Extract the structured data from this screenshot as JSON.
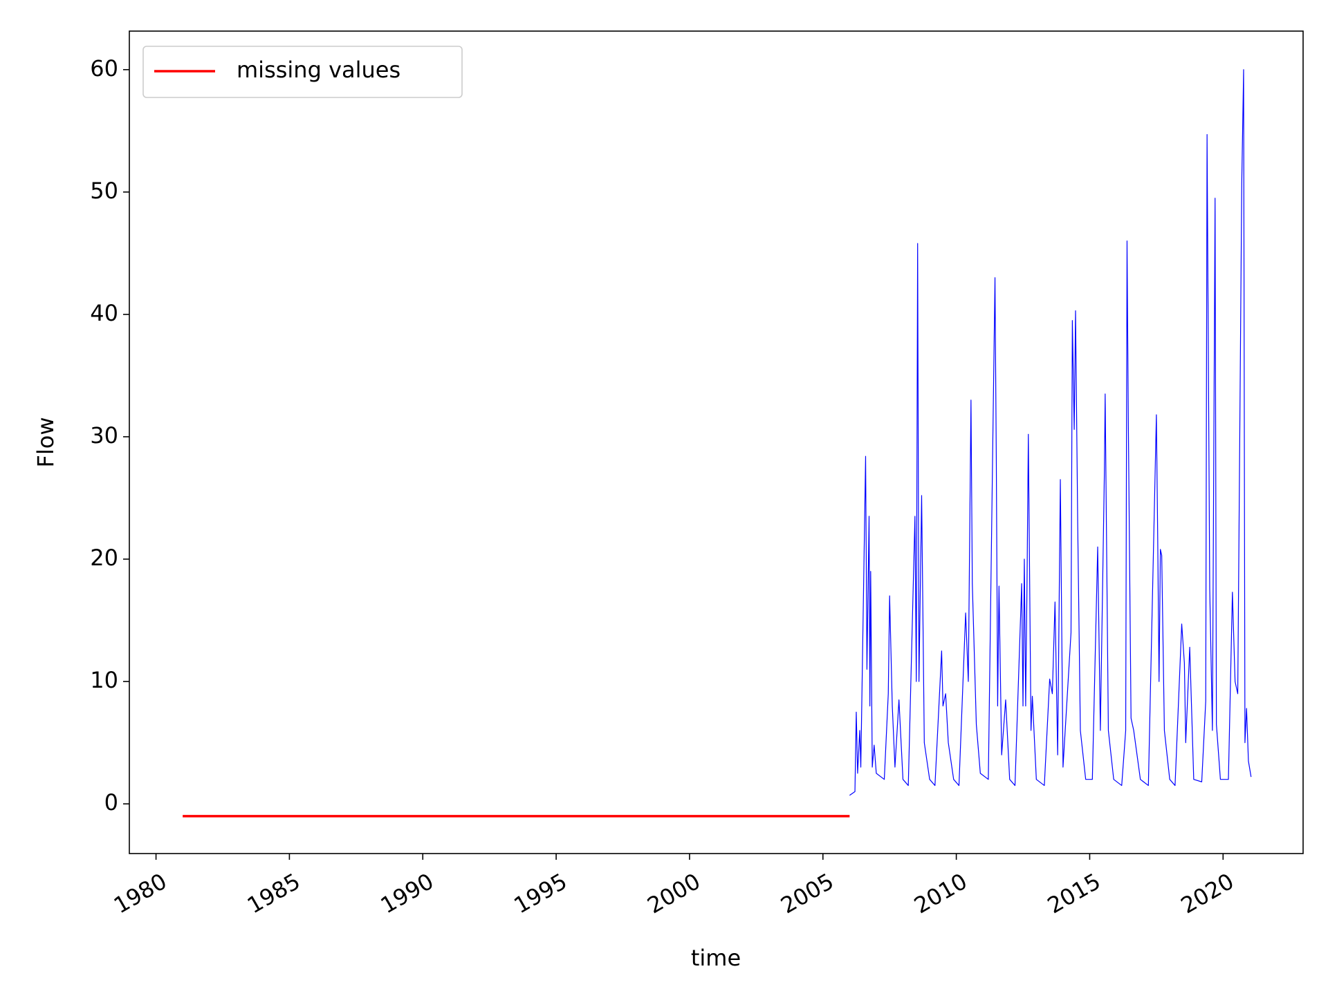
{
  "chart_data": {
    "type": "line",
    "xlabel": "time",
    "ylabel": "Flow",
    "xlim": [
      1979.0,
      2023.0
    ],
    "xticks": [
      1980,
      1985,
      1990,
      1995,
      2000,
      2005,
      2010,
      2015,
      2020
    ],
    "ylim": [
      -4.06,
      63.15
    ],
    "yticks": [
      0,
      10,
      20,
      30,
      40,
      50,
      60
    ],
    "grid": false,
    "legend": "upper left",
    "series": [
      {
        "name": "missing values",
        "color": "#ff0000",
        "x": [
          1981.0,
          2006.0
        ],
        "values": [
          -1,
          -1
        ]
      },
      {
        "color": "#0000ff",
        "x": [
          2006.0,
          2006.2,
          2006.25,
          2006.3,
          2006.38,
          2006.42,
          2006.6,
          2006.65,
          2006.73,
          2006.76,
          2006.79,
          2006.85,
          2006.92,
          2007.0,
          2007.3,
          2007.45,
          2007.5,
          2007.6,
          2007.7,
          2007.85,
          2008.0,
          2008.2,
          2008.45,
          2008.5,
          2008.55,
          2008.6,
          2008.7,
          2008.8,
          2009.0,
          2009.2,
          2009.45,
          2009.5,
          2009.6,
          2009.7,
          2009.9,
          2010.1,
          2010.35,
          2010.45,
          2010.55,
          2010.6,
          2010.75,
          2010.9,
          2011.2,
          2011.45,
          2011.5,
          2011.55,
          2011.6,
          2011.7,
          2011.85,
          2012.0,
          2012.2,
          2012.45,
          2012.5,
          2012.55,
          2012.6,
          2012.65,
          2012.7,
          2012.8,
          2012.85,
          2013.0,
          2013.3,
          2013.5,
          2013.6,
          2013.7,
          2013.8,
          2013.9,
          2014.0,
          2014.3,
          2014.35,
          2014.42,
          2014.47,
          2014.55,
          2014.65,
          2014.85,
          2015.1,
          2015.3,
          2015.4,
          2015.55,
          2015.58,
          2015.7,
          2015.9,
          2016.2,
          2016.35,
          2016.4,
          2016.45,
          2016.55,
          2016.65,
          2016.9,
          2017.2,
          2017.5,
          2017.55,
          2017.6,
          2017.65,
          2017.7,
          2017.8,
          2018.0,
          2018.2,
          2018.45,
          2018.55,
          2018.6,
          2018.75,
          2018.9,
          2019.2,
          2019.35,
          2019.4,
          2019.5,
          2019.6,
          2019.7,
          2019.75,
          2019.9,
          2020.2,
          2020.35,
          2020.45,
          2020.55,
          2020.7,
          2020.77,
          2020.82,
          2020.88,
          2020.95,
          2021.05
        ],
        "values": [
          0.7,
          1.0,
          7.5,
          2.5,
          6,
          3,
          28.4,
          11,
          23.5,
          8,
          19,
          3,
          4.8,
          2.5,
          2,
          9,
          17,
          8,
          3,
          8.5,
          2,
          1.5,
          23.5,
          10,
          45.8,
          10,
          25.2,
          5,
          2,
          1.5,
          12.5,
          8,
          9,
          5,
          2,
          1.5,
          15.6,
          10,
          33,
          18,
          6.5,
          2.5,
          2,
          43,
          27.8,
          8,
          17.8,
          4,
          8.5,
          2,
          1.5,
          18,
          8,
          20,
          8,
          17.8,
          30.2,
          6,
          8.8,
          2,
          1.5,
          10.2,
          9,
          16.5,
          4,
          26.5,
          3,
          14,
          39.5,
          30.6,
          40.3,
          23,
          6,
          2,
          2,
          21,
          6,
          27,
          33.5,
          6,
          2,
          1.5,
          6,
          46,
          30.8,
          7,
          6,
          2,
          1.5,
          31.8,
          21.7,
          10,
          20.8,
          20.3,
          6,
          2,
          1.5,
          14.7,
          11.5,
          5,
          12.8,
          2,
          1.8,
          8.4,
          54.7,
          17.6,
          6,
          49.5,
          6.5,
          2,
          2,
          17.3,
          10,
          9,
          50.7,
          60,
          5,
          7.8,
          3.5,
          2.2
        ]
      }
    ]
  }
}
